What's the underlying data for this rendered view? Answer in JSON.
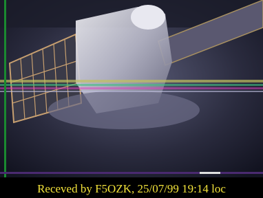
{
  "caption": "Receved by F5OZK, 25/07/99 19:14 loc"
}
